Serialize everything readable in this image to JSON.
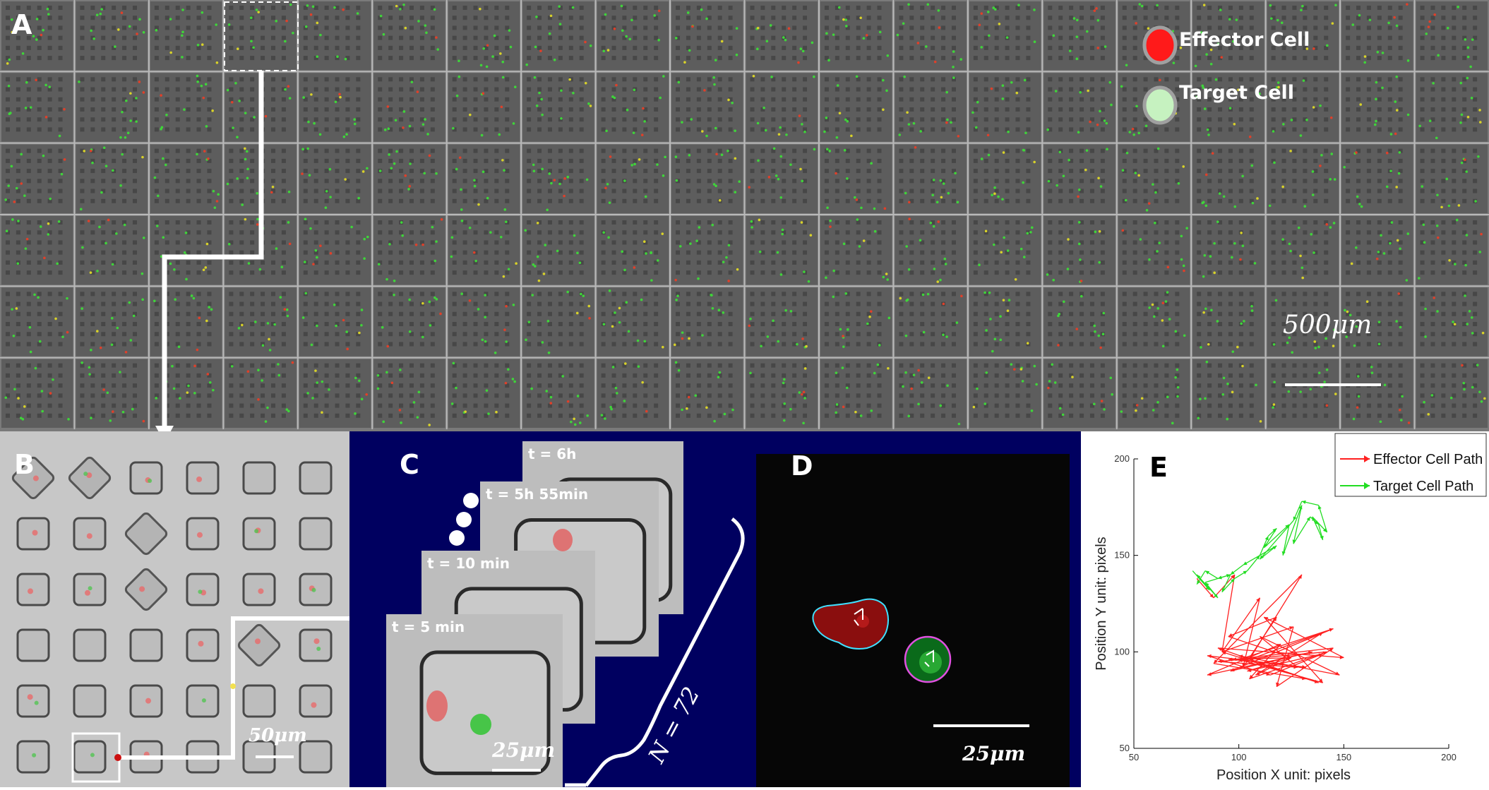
{
  "panel_a": {
    "label": "A",
    "legend": {
      "effector": "Effector Cell",
      "target": "Target Cell"
    },
    "scale_bar": "500μm",
    "grid": {
      "columns": 20,
      "rows": 6
    }
  },
  "panel_b": {
    "label": "B",
    "scale_bar": "50μm"
  },
  "panel_c": {
    "label": "C",
    "frames": [
      "t = 6h",
      "t = 5h 55min",
      "t = 10 min",
      "t = 5 min"
    ],
    "scale_bar": "25μm",
    "count": "N = 72"
  },
  "panel_d": {
    "label": "D",
    "scale_bar": "25μm"
  },
  "panel_e": {
    "label": "E",
    "xlabel": "Position X  unit: pixels",
    "ylabel": "Position Y  unit: pixels",
    "legend": {
      "effector": "Effector Cell Path",
      "target": "Target Cell Path"
    },
    "x_ticks": [
      "50",
      "100",
      "150",
      "200"
    ],
    "y_ticks": [
      "50",
      "100",
      "150",
      "200"
    ]
  },
  "colors": {
    "effector": "#ff2020",
    "target": "#22dd22",
    "panel_bg": "#000060"
  },
  "chart_data": {
    "type": "line",
    "xlim": [
      50,
      200
    ],
    "ylim": [
      50,
      200
    ],
    "xlabel": "Position X  unit: pixels",
    "ylabel": "Position Y  unit: pixels",
    "legend_position": "top-right",
    "series": [
      {
        "name": "Effector Cell Path",
        "x": [
          80,
          88,
          98,
          92,
          110,
          102,
          118,
          95,
          125,
          108,
          140,
          105,
          130,
          88,
          132,
          90,
          150,
          112,
          140,
          100,
          145,
          96,
          135,
          85,
          120,
          105,
          142,
          90,
          128,
          110,
          148,
          100,
          138,
          92,
          126,
          118,
          145,
          97,
          132,
          85,
          115,
          140,
          104,
          125,
          95
        ],
        "y": [
          138,
          128,
          140,
          100,
          128,
          92,
          118,
          108,
          97,
          88,
          110,
          96,
          140,
          94,
          86,
          102,
          97,
          118,
          84,
          96,
          112,
          90,
          100,
          88,
          104,
          86,
          100,
          95,
          92,
          108,
          88,
          98,
          84,
          100,
          113,
          82,
          102,
          96,
          92,
          98,
          88,
          99,
          90,
          97,
          96
        ]
      },
      {
        "name": "Target Cell Path",
        "x": [
          78,
          86,
          80,
          90,
          84,
          96,
          92,
          98,
          104,
          110,
          114,
          118,
          112,
          124,
          121,
          130,
          126,
          134,
          138,
          140,
          135,
          142,
          138,
          130,
          126,
          110,
          118,
          102,
          96,
          90,
          84,
          80
        ],
        "y": [
          142,
          132,
          140,
          128,
          136,
          140,
          131,
          138,
          142,
          150,
          160,
          164,
          154,
          166,
          150,
          176,
          156,
          170,
          166,
          158,
          170,
          162,
          176,
          178,
          168,
          148,
          155,
          145,
          140,
          138,
          142,
          135
        ]
      }
    ]
  }
}
